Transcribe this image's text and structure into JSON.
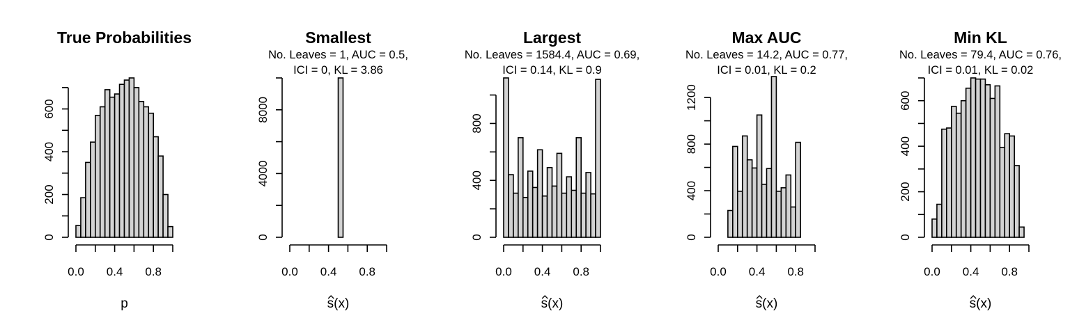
{
  "chart_data": [
    {
      "type": "histogram",
      "title": "True Probabilities",
      "subtitle_lines": [],
      "xlabel": "p",
      "xlabel_hat": false,
      "bin_start": 0.0,
      "bin_width": 0.05,
      "values": [
        55,
        185,
        350,
        445,
        570,
        610,
        690,
        655,
        670,
        715,
        735,
        745,
        700,
        635,
        610,
        580,
        470,
        380,
        200,
        50
      ],
      "xlim": [
        0.0,
        1.0
      ],
      "xticks": [
        0.0,
        0.2,
        0.4,
        0.6,
        0.8,
        1.0
      ],
      "xtick_labels": [
        "0.0",
        "",
        "0.4",
        "",
        "0.8",
        ""
      ],
      "ylim": [
        0,
        745
      ],
      "yticks": [
        0,
        100,
        200,
        300,
        400,
        500,
        600,
        700
      ],
      "ytick_labels": [
        "0",
        "",
        "200",
        "",
        "400",
        "",
        "600",
        ""
      ]
    },
    {
      "type": "histogram",
      "title": "Smallest",
      "subtitle_lines": [
        "No. Leaves = 1, AUC = 0.5,",
        "ICI = 0, KL = 3.86"
      ],
      "xlabel": "s(x)",
      "xlabel_hat": true,
      "bin_start": 0.0,
      "bin_width": 0.05,
      "values": [
        0,
        0,
        0,
        0,
        0,
        0,
        0,
        0,
        0,
        0,
        10000,
        0,
        0,
        0,
        0,
        0,
        0,
        0,
        0,
        0
      ],
      "xlim": [
        0.0,
        1.0
      ],
      "xticks": [
        0.0,
        0.2,
        0.4,
        0.6,
        0.8,
        1.0
      ],
      "xtick_labels": [
        "0.0",
        "",
        "0.4",
        "",
        "0.8",
        ""
      ],
      "ylim": [
        0,
        10000
      ],
      "yticks": [
        0,
        2000,
        4000,
        6000,
        8000,
        10000
      ],
      "ytick_labels": [
        "0",
        "",
        "4000",
        "",
        "8000",
        ""
      ]
    },
    {
      "type": "histogram",
      "title": "Largest",
      "subtitle_lines": [
        "No. Leaves = 1584.4, AUC = 0.69,",
        "ICI = 0.14, KL = 0.9"
      ],
      "xlabel": "s(x)",
      "xlabel_hat": true,
      "bin_start": 0.0,
      "bin_width": 0.05,
      "values": [
        1120,
        440,
        310,
        700,
        280,
        465,
        350,
        615,
        290,
        490,
        360,
        590,
        310,
        425,
        330,
        700,
        310,
        455,
        305,
        1110
      ],
      "xlim": [
        0.0,
        1.0
      ],
      "xticks": [
        0.0,
        0.2,
        0.4,
        0.6,
        0.8,
        1.0
      ],
      "xtick_labels": [
        "0.0",
        "",
        "0.4",
        "",
        "0.8",
        ""
      ],
      "ylim": [
        0,
        1120
      ],
      "yticks": [
        0,
        200,
        400,
        600,
        800,
        1000
      ],
      "ytick_labels": [
        "0",
        "",
        "400",
        "",
        "800",
        ""
      ]
    },
    {
      "type": "histogram",
      "title": "Max AUC",
      "subtitle_lines": [
        "No. Leaves = 14.2, AUC = 0.77,",
        "ICI = 0.01, KL = 0.2"
      ],
      "xlabel": "s(x)",
      "xlabel_hat": true,
      "bin_start": 0.1,
      "bin_width": 0.05,
      "values": [
        230,
        780,
        395,
        870,
        665,
        595,
        1050,
        455,
        590,
        1380,
        395,
        425,
        535,
        260,
        815
      ],
      "xlim": [
        0.0,
        1.0
      ],
      "xticks": [
        0.0,
        0.2,
        0.4,
        0.6,
        0.8,
        1.0
      ],
      "xtick_labels": [
        "0.0",
        "",
        "0.4",
        "",
        "0.8",
        ""
      ],
      "ylim": [
        0,
        1380
      ],
      "yticks": [
        0,
        200,
        400,
        600,
        800,
        1000,
        1200
      ],
      "ytick_labels": [
        "0",
        "",
        "400",
        "",
        "800",
        "",
        "1200"
      ]
    },
    {
      "type": "histogram",
      "title": "Min KL",
      "subtitle_lines": [
        "No. Leaves = 79.4, AUC = 0.76,",
        "ICI = 0.01, KL = 0.02"
      ],
      "xlabel": "s(x)",
      "xlabel_hat": true,
      "bin_start": 0.0,
      "bin_width": 0.05,
      "values": [
        80,
        145,
        475,
        480,
        575,
        545,
        600,
        655,
        700,
        695,
        695,
        670,
        610,
        665,
        395,
        455,
        445,
        315,
        45
      ],
      "xlim": [
        0.0,
        1.0
      ],
      "xticks": [
        0.0,
        0.2,
        0.4,
        0.6,
        0.8,
        1.0
      ],
      "xtick_labels": [
        "0.0",
        "",
        "0.4",
        "",
        "0.8",
        ""
      ],
      "ylim": [
        0,
        700
      ],
      "yticks": [
        0,
        100,
        200,
        300,
        400,
        500,
        600,
        700
      ],
      "ytick_labels": [
        "0",
        "",
        "200",
        "",
        "400",
        "",
        "600",
        ""
      ]
    }
  ]
}
